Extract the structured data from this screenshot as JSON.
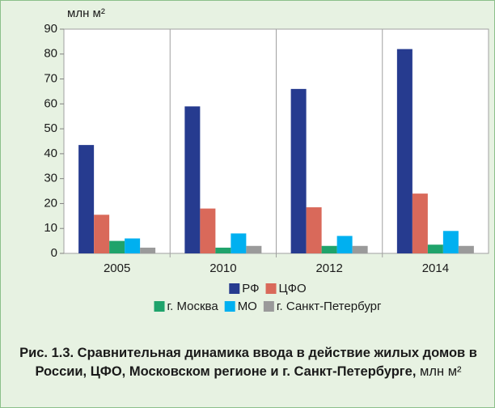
{
  "chart_data": {
    "type": "bar",
    "y_unit": "млн м²",
    "categories": [
      "2005",
      "2010",
      "2012",
      "2014"
    ],
    "series": [
      {
        "name": "РФ",
        "color": "#263b8f",
        "values": [
          43.5,
          59,
          66,
          82
        ]
      },
      {
        "name": "ЦФО",
        "color": "#d9695a",
        "values": [
          15.5,
          18,
          18.5,
          24
        ]
      },
      {
        "name": "г. Москва",
        "color": "#1fa36b",
        "values": [
          5,
          2.3,
          3,
          3.5
        ]
      },
      {
        "name": "МО",
        "color": "#00b0f0",
        "values": [
          6,
          8,
          7,
          9
        ]
      },
      {
        "name": "г. Санкт-Петербург",
        "color": "#9a9a9a",
        "values": [
          2.3,
          3,
          3,
          3
        ]
      }
    ],
    "ylim": [
      0,
      90
    ],
    "yticks": [
      0,
      10,
      20,
      30,
      40,
      50,
      60,
      70,
      80,
      90
    ],
    "caption_bold": "Рис. 1.3. Сравнительная динамика ввода в действие жилых домов в России, ЦФО, Московском регионе и г. Санкт-Петербурге,",
    "caption_unit": "млн м²"
  }
}
